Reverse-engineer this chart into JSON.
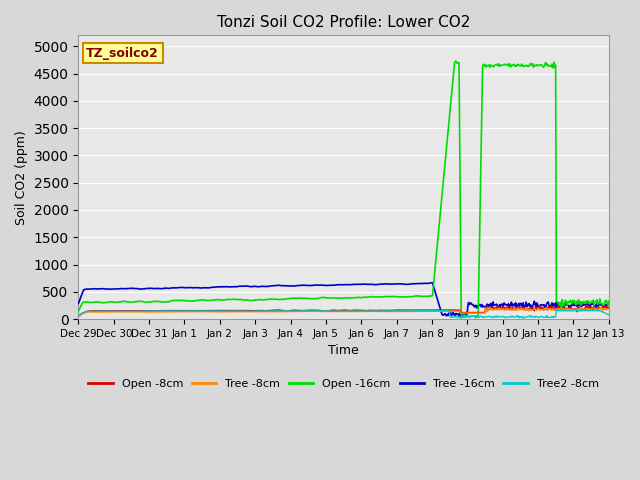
{
  "title": "Tonzi Soil CO2 Profile: Lower CO2",
  "xlabel": "Time",
  "ylabel": "Soil CO2 (ppm)",
  "ylim": [
    0,
    5200
  ],
  "yticks": [
    0,
    500,
    1000,
    1500,
    2000,
    2500,
    3000,
    3500,
    4000,
    4500,
    5000
  ],
  "bg_color": "#d8d8d8",
  "plot_bg_color": "#e8e8e8",
  "grid_color": "#ffffff",
  "label_box_text": "TZ_soilco2",
  "label_box_bg": "#ffff99",
  "label_box_edge": "#cc8800",
  "label_box_text_color": "#880000",
  "series": {
    "open_8cm": {
      "color": "#dd0000",
      "label": "Open -8cm",
      "lw": 1.0
    },
    "tree_8cm": {
      "color": "#ff8800",
      "label": "Tree -8cm",
      "lw": 1.0
    },
    "open_16cm": {
      "color": "#00dd00",
      "label": "Open -16cm",
      "lw": 1.2
    },
    "tree_16cm": {
      "color": "#0000cc",
      "label": "Tree -16cm",
      "lw": 1.2
    },
    "tree2_8cm": {
      "color": "#00cccc",
      "label": "Tree2 -8cm",
      "lw": 1.0
    }
  },
  "xtick_positions": [
    0,
    1,
    2,
    3,
    4,
    5,
    6,
    7,
    8,
    9,
    10,
    11,
    12,
    13,
    14,
    15
  ],
  "xtick_labels": [
    "Dec 29",
    "Dec 30",
    "Dec 31",
    "Jan 1",
    "Jan 2",
    "Jan 3",
    "Jan 4",
    "Jan 5",
    "Jan 6",
    "Jan 7",
    "Jan 8",
    "Jan 9",
    "Jan 10",
    "Jan 11",
    "Jan 12",
    "Jan 13"
  ]
}
